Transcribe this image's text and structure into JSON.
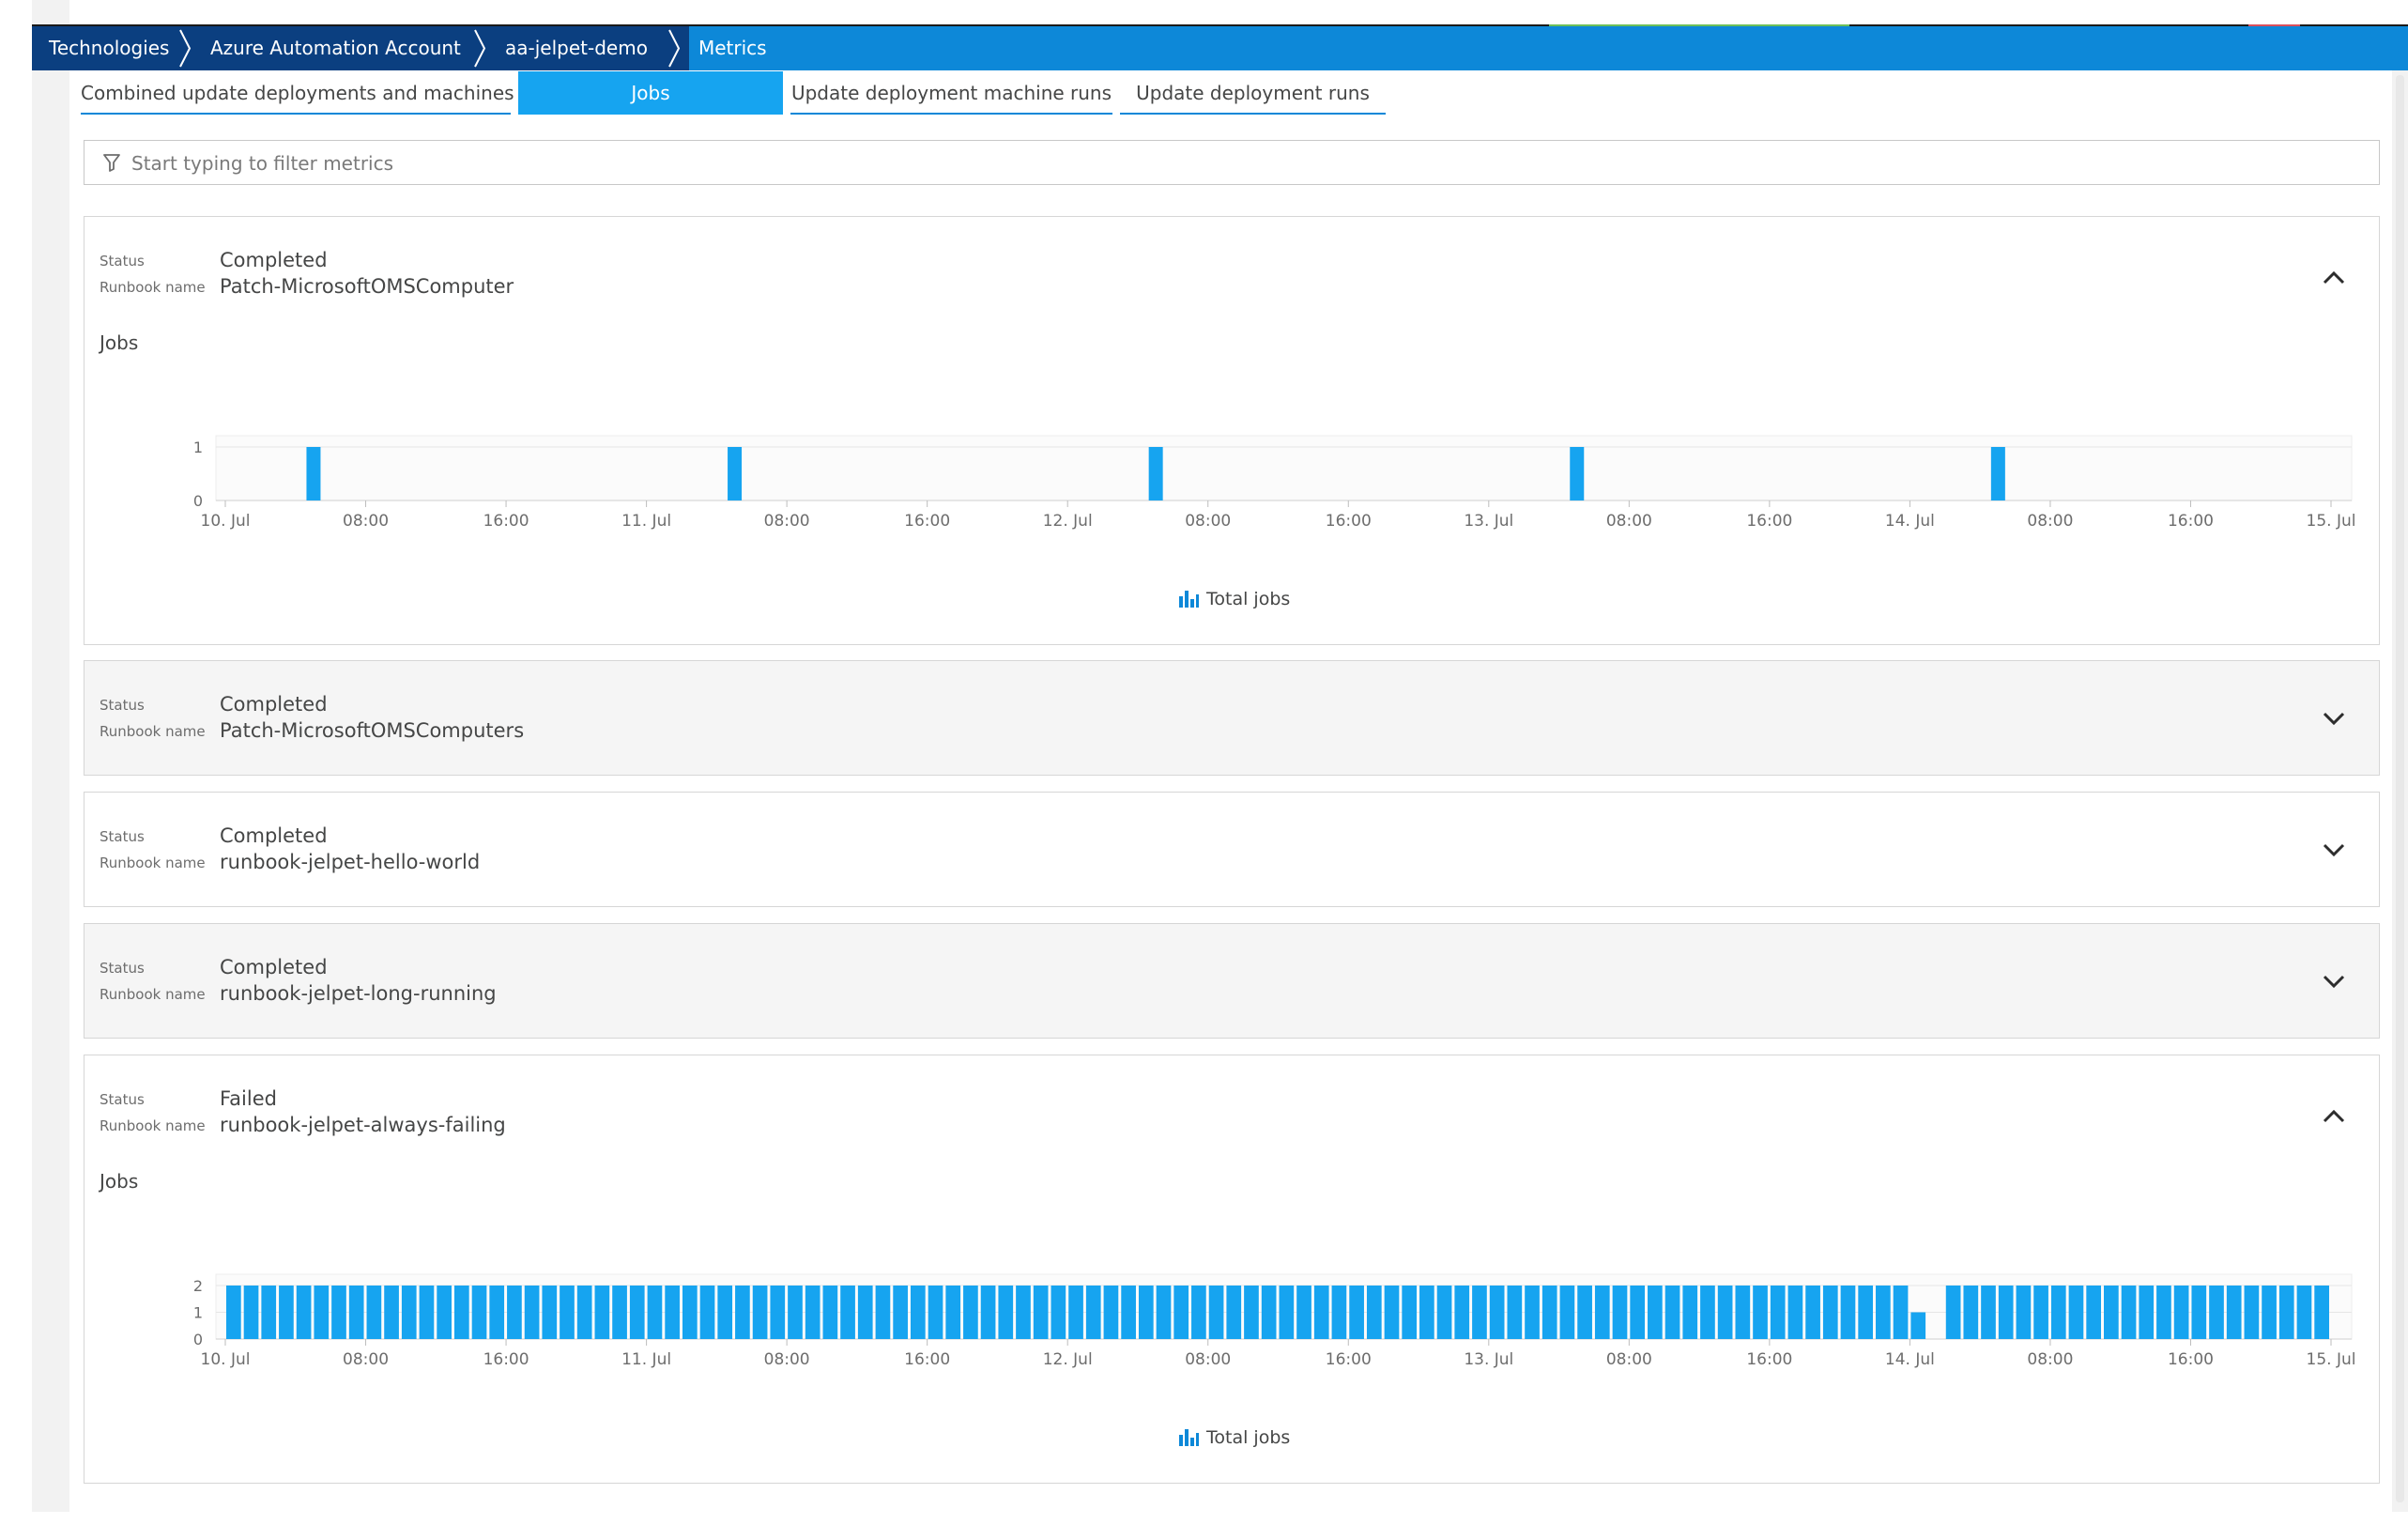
{
  "breadcrumb": [
    "Technologies",
    "Azure Automation Account",
    "aa-jelpet-demo",
    "Metrics"
  ],
  "tabs": [
    {
      "label": "Combined update deployments and machines",
      "active": false
    },
    {
      "label": "Jobs",
      "active": true
    },
    {
      "label": "Update deployment machine runs",
      "active": false
    },
    {
      "label": "Update deployment runs",
      "active": false
    }
  ],
  "filter": {
    "placeholder": "Start typing to filter metrics",
    "icon": "filter-icon"
  },
  "labels": {
    "status": "Status",
    "runbook": "Runbook name",
    "jobs": "Jobs",
    "legend": "Total jobs"
  },
  "colors": {
    "accent": "#0d88d8",
    "bar": "#16a4f0",
    "breadcrumb_dark": "#0b3f80"
  },
  "panels": [
    {
      "status": "Completed",
      "runbook": "Patch-MicrosoftOMSComputer",
      "expanded": true
    },
    {
      "status": "Completed",
      "runbook": "Patch-MicrosoftOMSComputers",
      "expanded": false
    },
    {
      "status": "Completed",
      "runbook": "runbook-jelpet-hello-world",
      "expanded": false
    },
    {
      "status": "Completed",
      "runbook": "runbook-jelpet-long-running",
      "expanded": false
    },
    {
      "status": "Failed",
      "runbook": "runbook-jelpet-always-failing",
      "expanded": true
    }
  ],
  "chart_data": [
    {
      "type": "bar",
      "title": "Jobs",
      "x_ticks": [
        "10. Jul",
        "08:00",
        "16:00",
        "11. Jul",
        "08:00",
        "16:00",
        "12. Jul",
        "08:00",
        "16:00",
        "13. Jul",
        "08:00",
        "16:00",
        "14. Jul",
        "08:00",
        "16:00",
        "15. Jul"
      ],
      "x_range_hours": [
        0,
        120
      ],
      "y_ticks": [
        0,
        1
      ],
      "ylim": [
        0,
        1
      ],
      "series": [
        {
          "name": "Total jobs",
          "x_hours": [
            5,
            29,
            53,
            77,
            101
          ],
          "values": [
            1,
            1,
            1,
            1,
            1
          ]
        }
      ]
    },
    {
      "type": "bar",
      "title": "Jobs",
      "x_ticks": [
        "10. Jul",
        "08:00",
        "16:00",
        "11. Jul",
        "08:00",
        "16:00",
        "12. Jul",
        "08:00",
        "16:00",
        "13. Jul",
        "08:00",
        "16:00",
        "14. Jul",
        "08:00",
        "16:00",
        "15. Jul"
      ],
      "x_range_hours": [
        0,
        120
      ],
      "y_ticks": [
        0,
        1,
        2
      ],
      "ylim": [
        0,
        2
      ],
      "bins": 120,
      "series": [
        {
          "name": "Total jobs",
          "default_value": 2,
          "exceptions": {
            "96": 1,
            "97": 0
          }
        }
      ]
    }
  ]
}
